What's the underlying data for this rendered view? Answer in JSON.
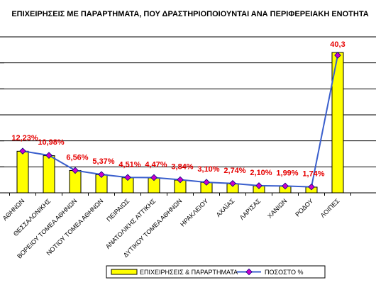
{
  "chart_data": {
    "type": "bar",
    "title": "ΕΠΙΧΕΙΡΗΣΕΙΣ ΜΕ ΠΑΡΑΡΤΗΜΑΤΑ, ΠΟΥ ΔΡΑΣΤΗΡΙΟΠΟΙΟΥΝΤΑΙ ΑΝΑ ΠΕΡΙΦΕΡΕΙΑΚΗ ΕΝΟΤΗΤΑ",
    "categories": [
      "ΑΘΗΝΩΝ",
      "ΘΕΣΣΑΛΟΝΙΚΗΣ",
      "ΒΟΡΕΙΟΥ ΤΟΜΕΑ ΑΘΗΝΩΝ",
      "ΝΟΤΙΟΥ ΤΟΜΕΑ ΑΘΗΝΩΝ",
      "ΠΕΙΡΑΙΩΣ",
      "ΑΝΑΤΟΛΙΚΗΣ ΑΤΤΙΚΗΣ",
      "ΔΥΤΙΚΟΥ ΤΟΜΕΑ ΑΘΗΝΩΝ",
      "ΗΡΑΚΛΕΙΟΥ",
      "ΑΧΑΪΑΣ",
      "ΛΑΡΙΣΑΣ",
      "ΧΑΝΙΩΝ",
      "ΡΟΔΟΥ",
      "ΛΟΙΠΕΣ"
    ],
    "series": [
      {
        "name": "ΕΠΙΧΕΙΡΗΣΕΙΣ & ΠΑΡΑΡΤΗΜΑΤΑ",
        "kind": "bar",
        "color": "#ffff00",
        "values": [
          1600,
          1430,
          860,
          700,
          580,
          570,
          490,
          400,
          350,
          270,
          260,
          220,
          5400
        ]
      },
      {
        "name": "ΠΟΣΟΣΤΟ %",
        "kind": "line",
        "color": "#3a5fcd",
        "marker_color": "#cc00cc",
        "values": [
          12.23,
          10.98,
          6.56,
          5.37,
          4.51,
          4.47,
          3.84,
          3.1,
          2.74,
          2.1,
          1.99,
          1.74,
          40.3
        ],
        "labels": [
          "12,23%",
          "10,98%",
          "6,56%",
          "5,37%",
          "4,51%",
          "4,47%",
          "3,84%",
          "3,10%",
          "2,74%",
          "2,10%",
          "1,99%",
          "1,74%",
          "40,3"
        ]
      }
    ],
    "ylim": [
      0,
      6000
    ],
    "legend": "bottom",
    "grid": true
  }
}
